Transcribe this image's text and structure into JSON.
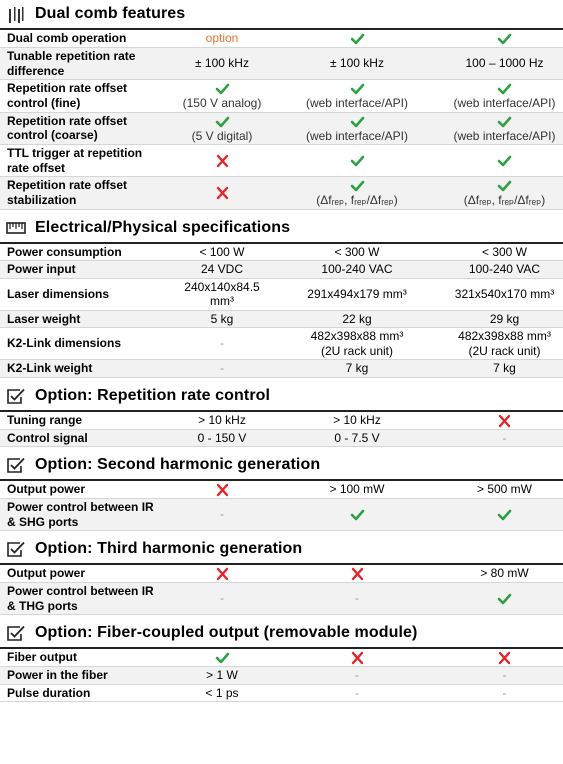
{
  "sections": [
    {
      "title": "Dual comb features",
      "icon": "bars",
      "rows": [
        {
          "label": "Dual comb operation",
          "cells": [
            {
              "text": "option",
              "color": "#e97132"
            },
            {
              "icon": "check"
            },
            {
              "icon": "check"
            }
          ]
        },
        {
          "label": "Tunable repetition rate difference",
          "cells": [
            "± 100 kHz",
            "± 100 kHz",
            "100 – 1000 Hz"
          ]
        },
        {
          "label": "Repetition rate offset control (fine)",
          "cells": [
            {
              "icon": "check",
              "text": "(150 V analog)"
            },
            {
              "icon": "check",
              "text": "(web interface/API)"
            },
            {
              "icon": "check",
              "text": "(web interface/API)"
            }
          ]
        },
        {
          "label": "Repetition rate offset control (coarse)",
          "cells": [
            {
              "icon": "check",
              "text": "(5 V digital)"
            },
            {
              "icon": "check",
              "text": "(web interface/API)"
            },
            {
              "icon": "check",
              "text": "(web interface/API)"
            }
          ]
        },
        {
          "label": "TTL trigger at repetition rate offset",
          "cells": [
            {
              "icon": "cross"
            },
            {
              "icon": "check"
            },
            {
              "icon": "check"
            }
          ]
        },
        {
          "label": "Repetition rate offset stabilization",
          "cells": [
            {
              "icon": "cross"
            },
            {
              "icon": "check",
              "text": "(Δfᵣₑₚ, fᵣₑₚ/Δfᵣₑₚ)"
            },
            {
              "icon": "check",
              "text": "(Δfᵣₑₚ, fᵣₑₚ/Δfᵣₑₚ)"
            }
          ]
        }
      ]
    },
    {
      "title": "Electrical/Physical specifications",
      "icon": "ruler",
      "rows": [
        {
          "label": "Power consumption",
          "cells": [
            "< 100 W",
            "< 300 W",
            "< 300 W"
          ]
        },
        {
          "label": "Power input",
          "cells": [
            "24 VDC",
            "100-240 VAC",
            "100-240 VAC"
          ]
        },
        {
          "label": "Laser dimensions",
          "cells": [
            "240x140x84.5 mm³",
            "291x494x179 mm³",
            "321x540x170 mm³"
          ]
        },
        {
          "label": "Laser weight",
          "cells": [
            "5 kg",
            "22 kg",
            "29 kg"
          ]
        },
        {
          "label": "K2-Link dimensions",
          "cells": [
            "-",
            "482x398x88 mm³\n(2U rack unit)",
            "482x398x88 mm³\n(2U rack unit)"
          ]
        },
        {
          "label": "K2-Link weight",
          "cells": [
            "-",
            "7 kg",
            "7 kg"
          ]
        }
      ]
    },
    {
      "title": "Option: Repetition rate control",
      "icon": "checkbox",
      "rows": [
        {
          "label": "Tuning range",
          "cells": [
            "> 10 kHz",
            "> 10 kHz",
            {
              "icon": "cross"
            }
          ]
        },
        {
          "label": "Control signal",
          "cells": [
            "0 - 150 V",
            "0 - 7.5 V",
            "-"
          ]
        }
      ]
    },
    {
      "title": "Option: Second harmonic generation",
      "icon": "checkbox",
      "rows": [
        {
          "label": "Output power",
          "cells": [
            {
              "icon": "cross"
            },
            "> 100 mW",
            "> 500 mW"
          ]
        },
        {
          "label": "Power control between IR & SHG ports",
          "cells": [
            "-",
            {
              "icon": "check"
            },
            {
              "icon": "check"
            }
          ]
        }
      ]
    },
    {
      "title": "Option: Third harmonic generation",
      "icon": "checkbox",
      "rows": [
        {
          "label": "Output power",
          "cells": [
            {
              "icon": "cross"
            },
            {
              "icon": "cross"
            },
            "> 80 mW"
          ]
        },
        {
          "label": "Power control between IR & THG ports",
          "cells": [
            "-",
            "-",
            {
              "icon": "check"
            }
          ]
        }
      ]
    },
    {
      "title": "Option: Fiber-coupled output (removable module)",
      "icon": "checkbox",
      "rows": [
        {
          "label": "Fiber output",
          "cells": [
            {
              "icon": "check"
            },
            {
              "icon": "cross"
            },
            {
              "icon": "cross"
            }
          ]
        },
        {
          "label": "Power in the fiber",
          "cells": [
            "> 1 W",
            "-",
            "-"
          ]
        },
        {
          "label": "Pulse duration",
          "cells": [
            "< 1 ps",
            "-",
            "-"
          ]
        }
      ]
    }
  ]
}
